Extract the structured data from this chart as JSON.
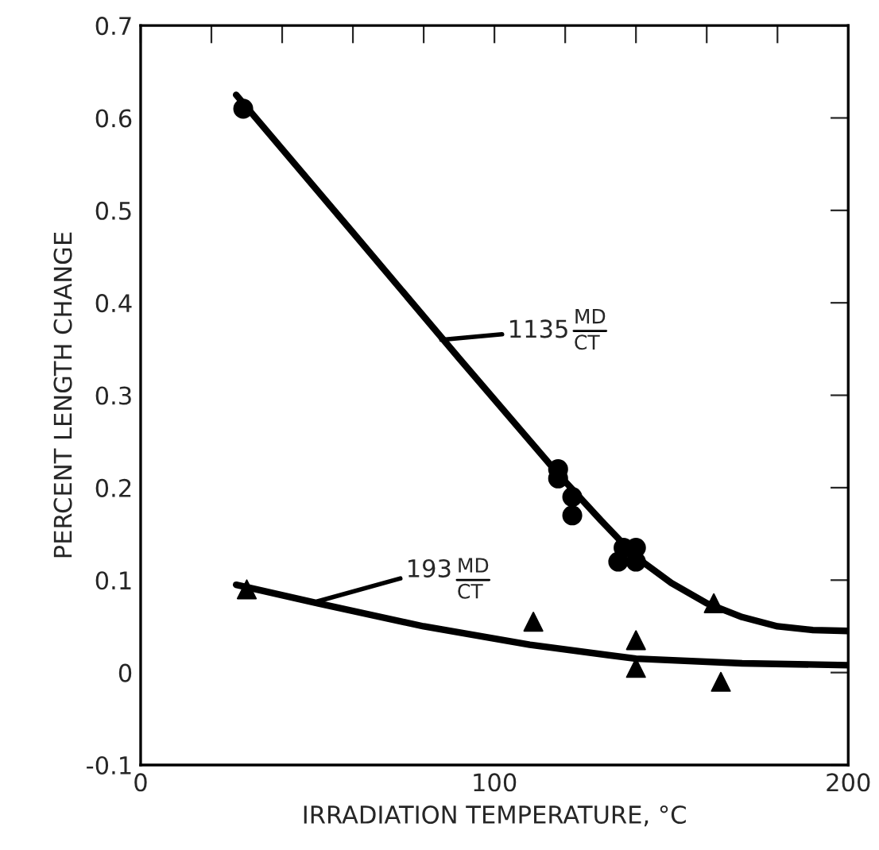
{
  "chart_data": {
    "type": "scatter",
    "xlabel": "IRRADIATION TEMPERATURE, °C",
    "ylabel": "PERCENT LENGTH CHANGE",
    "xlim": [
      0,
      200
    ],
    "ylim": [
      -0.1,
      0.7
    ],
    "xticks": [
      0,
      {
        "value": 20,
        "label": null
      },
      {
        "value": 40,
        "label": null
      },
      {
        "value": 60,
        "label": null
      },
      {
        "value": 80,
        "label": null
      },
      100,
      {
        "value": 120,
        "label": null
      },
      {
        "value": 140,
        "label": null
      },
      {
        "value": 160,
        "label": null
      },
      {
        "value": 180,
        "label": null
      },
      200
    ],
    "yticks": [
      -0.1,
      0,
      0.1,
      0.2,
      0.3,
      0.4,
      0.5,
      0.6,
      0.7
    ],
    "grid": false,
    "series": [
      {
        "type": "line",
        "color": "#000000",
        "marker": "none",
        "x": [
          27,
          60,
          90,
          118,
          130,
          140,
          150,
          160,
          170,
          180,
          190,
          200
        ],
        "values": [
          0.625,
          0.476,
          0.34,
          0.215,
          0.165,
          0.125,
          0.097,
          0.075,
          0.06,
          0.05,
          0.046,
          0.045
        ]
      },
      {
        "type": "line",
        "color": "#000000",
        "marker": "none",
        "x": [
          27,
          50,
          80,
          110,
          140,
          170,
          200
        ],
        "values": [
          0.095,
          0.075,
          0.05,
          0.03,
          0.015,
          0.01,
          0.008
        ]
      },
      {
        "color": "#000000",
        "marker": "circle",
        "x": [
          29,
          118,
          118,
          122,
          122,
          135,
          140,
          136.5,
          140
        ],
        "values": [
          0.61,
          0.22,
          0.21,
          0.19,
          0.17,
          0.12,
          0.12,
          0.135,
          0.135
        ]
      },
      {
        "color": "#000000",
        "marker": "triangle",
        "x": [
          30,
          111,
          140,
          140,
          162,
          164
        ],
        "values": [
          0.09,
          0.055,
          0.035,
          0.005,
          0.075,
          -0.01
        ]
      }
    ],
    "annotations": [
      {
        "text": "1135",
        "x": 85,
        "y": 0.36
      },
      "MD",
      "CT",
      {
        "text": "193",
        "x": 50,
        "y": 0.077
      },
      "MD",
      "CT"
    ]
  }
}
